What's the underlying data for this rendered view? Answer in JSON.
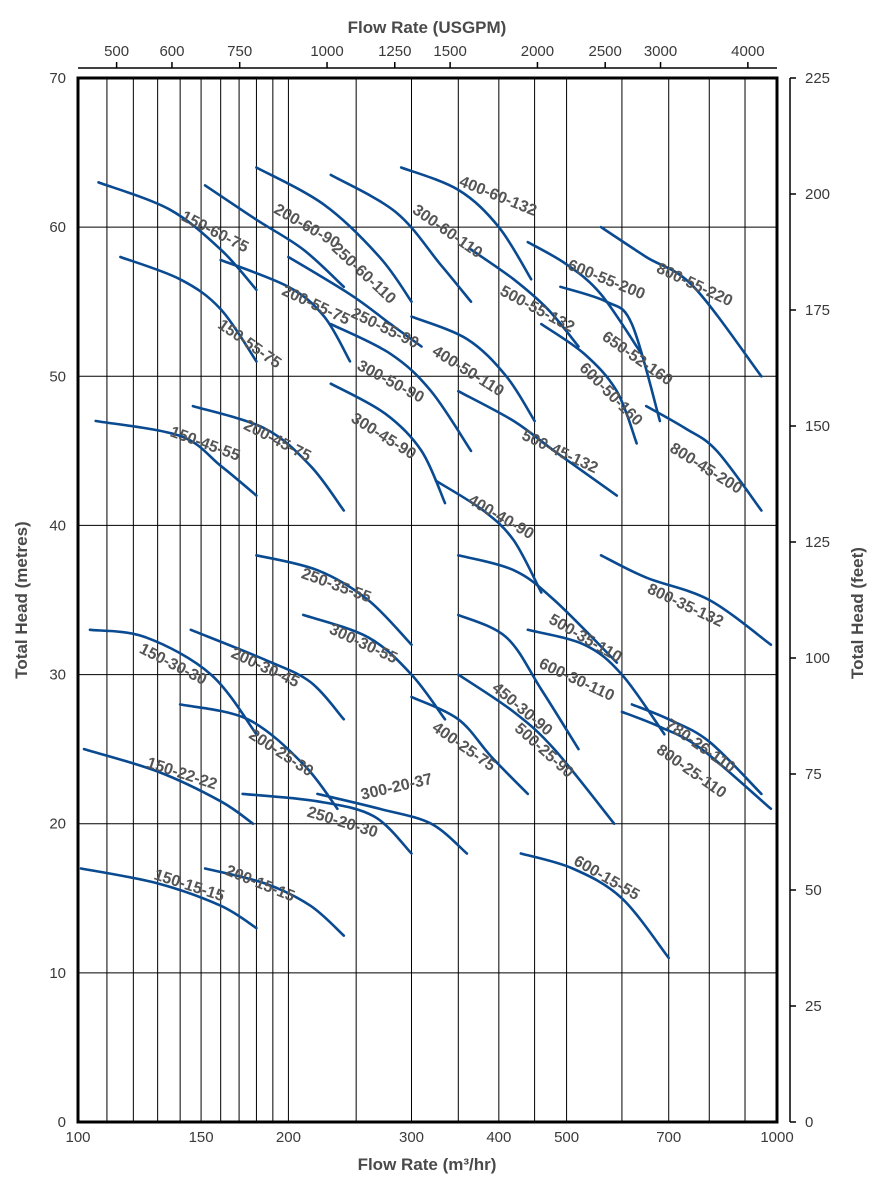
{
  "chart_data": {
    "type": "line",
    "xscale": "log",
    "xlabel": "Flow Rate (m³/hr)",
    "ylabel": "Total Head (metres)",
    "x2label": "Flow Rate (USGPM)",
    "y2label": "Total Head (feet)",
    "xlim": [
      100,
      1000
    ],
    "ylim": [
      0,
      70
    ],
    "y2lim": [
      0,
      225
    ],
    "grid": true,
    "x_ticks": [
      {
        "value": 100,
        "label": "100"
      },
      {
        "value": 150,
        "label": "150"
      },
      {
        "value": 200,
        "label": "200"
      },
      {
        "value": 300,
        "label": "300"
      },
      {
        "value": 400,
        "label": "400"
      },
      {
        "value": 500,
        "label": "500"
      },
      {
        "value": 700,
        "label": "700"
      },
      {
        "value": 1000,
        "label": "1000"
      }
    ],
    "x_gridlines": [
      100,
      110,
      120,
      130,
      140,
      150,
      160,
      170,
      180,
      190,
      200,
      250,
      300,
      350,
      400,
      450,
      500,
      600,
      700,
      800,
      900,
      1000
    ],
    "x2_ticks": [
      {
        "value": 500,
        "label": "500"
      },
      {
        "value": 600,
        "label": "600"
      },
      {
        "value": 750,
        "label": "750"
      },
      {
        "value": 1000,
        "label": "1000"
      },
      {
        "value": 1250,
        "label": "1250"
      },
      {
        "value": 1500,
        "label": "1500"
      },
      {
        "value": 2000,
        "label": "2000"
      },
      {
        "value": 2500,
        "label": "2500"
      },
      {
        "value": 3000,
        "label": "3000"
      },
      {
        "value": 4000,
        "label": "4000"
      }
    ],
    "y_ticks": [
      {
        "value": 0,
        "label": "0"
      },
      {
        "value": 10,
        "label": "10"
      },
      {
        "value": 20,
        "label": "20"
      },
      {
        "value": 30,
        "label": "30"
      },
      {
        "value": 40,
        "label": "40"
      },
      {
        "value": 50,
        "label": "50"
      },
      {
        "value": 60,
        "label": "60"
      },
      {
        "value": 70,
        "label": "70"
      }
    ],
    "y2_ticks": [
      {
        "value": 0,
        "label": "0"
      },
      {
        "value": 25,
        "label": "25"
      },
      {
        "value": 50,
        "label": "50"
      },
      {
        "value": 75,
        "label": "75"
      },
      {
        "value": 100,
        "label": "100"
      },
      {
        "value": 125,
        "label": "125"
      },
      {
        "value": 150,
        "label": "150"
      },
      {
        "value": 175,
        "label": "175"
      },
      {
        "value": 200,
        "label": "200"
      },
      {
        "value": 225,
        "label": "225"
      }
    ],
    "colors": {
      "curve": "#0a4a91",
      "frame": "#000000",
      "grid": "#000000",
      "label": "#555555"
    },
    "series": [
      {
        "name": "150-60-75",
        "x": [
          107,
          135,
          160,
          180
        ],
        "y": [
          63,
          61.2,
          58.5,
          55.8
        ],
        "label_at": [
          140,
          60.5
        ],
        "label_angle": 27
      },
      {
        "name": "200-60-90",
        "x": [
          152,
          180,
          210,
          240
        ],
        "y": [
          62.8,
          60.5,
          58.5,
          56
        ],
        "label_at": [
          190,
          61
        ],
        "label_angle": 30
      },
      {
        "name": "250-60-110",
        "x": [
          180,
          225,
          270,
          300
        ],
        "y": [
          64,
          61.5,
          58,
          55
        ],
        "label_at": [
          230,
          58.5
        ],
        "label_angle": 43
      },
      {
        "name": "300-60-110",
        "x": [
          230,
          285,
          330,
          365
        ],
        "y": [
          63.5,
          61,
          57.5,
          55
        ],
        "label_at": [
          300,
          61
        ],
        "label_angle": 35
      },
      {
        "name": "400-60-132",
        "x": [
          290,
          350,
          400,
          445
        ],
        "y": [
          64,
          62.5,
          60,
          56.5
        ],
        "label_at": [
          350,
          62.8
        ],
        "label_angle": 22
      },
      {
        "name": "150-55-75",
        "x": [
          115,
          140,
          160,
          180
        ],
        "y": [
          58,
          56.5,
          54.5,
          51
        ],
        "label_at": [
          158,
          53.3
        ],
        "label_angle": 35
      },
      {
        "name": "200-55-75",
        "x": [
          160,
          200,
          225,
          245
        ],
        "y": [
          57.8,
          56,
          54,
          51
        ],
        "label_at": [
          195,
          55.5
        ],
        "label_angle": 25
      },
      {
        "name": "250-55-90",
        "x": [
          200,
          245,
          280,
          310
        ],
        "y": [
          58,
          55.5,
          53.5,
          52
        ],
        "label_at": [
          245,
          54
        ],
        "label_angle": 26
      },
      {
        "name": "500-55-132",
        "x": [
          365,
          420,
          470,
          520
        ],
        "y": [
          58.5,
          56.5,
          54.5,
          52
        ],
        "label_at": [
          400,
          55.5
        ],
        "label_angle": 28
      },
      {
        "name": "600-55-200",
        "x": [
          440,
          500,
          560,
          640
        ],
        "y": [
          59,
          57.5,
          55.5,
          51.5
        ],
        "label_at": [
          500,
          57.2
        ],
        "label_angle": 22
      },
      {
        "name": "800-55-220",
        "x": [
          560,
          650,
          760,
          950
        ],
        "y": [
          60,
          58,
          56,
          50
        ],
        "label_at": [
          670,
          57
        ],
        "label_angle": 25
      },
      {
        "name": "650-52-160",
        "x": [
          490,
          570,
          620,
          680
        ],
        "y": [
          56,
          55,
          53.5,
          47
        ],
        "label_at": [
          560,
          52.5
        ],
        "label_angle": 35
      },
      {
        "name": "600-50-160",
        "x": [
          460,
          530,
          590,
          630
        ],
        "y": [
          53.5,
          51.5,
          49,
          45.5
        ],
        "label_at": [
          520,
          50.5
        ],
        "label_angle": 45
      },
      {
        "name": "400-50-110",
        "x": [
          300,
          360,
          410,
          450
        ],
        "y": [
          54,
          52.5,
          50,
          47
        ],
        "label_at": [
          320,
          51.5
        ],
        "label_angle": 32
      },
      {
        "name": "300-50-90",
        "x": [
          230,
          280,
          320,
          365
        ],
        "y": [
          53.5,
          51.5,
          49,
          45
        ],
        "label_at": [
          250,
          50.5
        ],
        "label_angle": 28
      },
      {
        "name": "500-45-132",
        "x": [
          350,
          420,
          480,
          590
        ],
        "y": [
          49,
          47,
          45,
          42
        ],
        "label_at": [
          430,
          45.8
        ],
        "label_angle": 25
      },
      {
        "name": "800-45-200",
        "x": [
          650,
          740,
          820,
          950
        ],
        "y": [
          48,
          46.5,
          45,
          41
        ],
        "label_at": [
          700,
          45
        ],
        "label_angle": 32
      },
      {
        "name": "150-45-55",
        "x": [
          106,
          140,
          160,
          180
        ],
        "y": [
          47,
          46,
          44,
          42
        ],
        "label_at": [
          135,
          46
        ],
        "label_angle": 20
      },
      {
        "name": "200-45-75",
        "x": [
          146,
          185,
          215,
          240
        ],
        "y": [
          48,
          46.5,
          44,
          41
        ],
        "label_at": [
          172,
          46.5
        ],
        "label_angle": 27
      },
      {
        "name": "300-45-90",
        "x": [
          230,
          275,
          310,
          335
        ],
        "y": [
          49.5,
          47.5,
          45,
          41.5
        ],
        "label_at": [
          245,
          47
        ],
        "label_angle": 32
      },
      {
        "name": "400-40-90",
        "x": [
          325,
          380,
          420,
          460
        ],
        "y": [
          43,
          41,
          39,
          35.5
        ],
        "label_at": [
          360,
          41.5
        ],
        "label_angle": 30
      },
      {
        "name": "250-35-55",
        "x": [
          180,
          220,
          260,
          300
        ],
        "y": [
          38,
          37,
          35,
          32
        ],
        "label_at": [
          208,
          36.5
        ],
        "label_angle": 20
      },
      {
        "name": "500-35-110",
        "x": [
          350,
          420,
          480,
          590
        ],
        "y": [
          38,
          37,
          35,
          30.8
        ],
        "label_at": [
          470,
          33.5
        ],
        "label_angle": 30
      },
      {
        "name": "800-35-132",
        "x": [
          560,
          650,
          800,
          980
        ],
        "y": [
          38,
          36.5,
          35,
          32
        ],
        "label_at": [
          650,
          35.5
        ],
        "label_angle": 25
      },
      {
        "name": "150-30-30",
        "x": [
          104,
          125,
          155,
          180
        ],
        "y": [
          33,
          32.5,
          30,
          26
        ],
        "label_at": [
          122,
          31.5
        ],
        "label_angle": 27
      },
      {
        "name": "200-30-45",
        "x": [
          145,
          185,
          215,
          240
        ],
        "y": [
          33,
          31,
          29.5,
          27
        ],
        "label_at": [
          165,
          31.2
        ],
        "label_angle": 25
      },
      {
        "name": "300-30-55",
        "x": [
          210,
          260,
          300,
          335
        ],
        "y": [
          34,
          32.5,
          30,
          27
        ],
        "label_at": [
          228,
          32.8
        ],
        "label_angle": 25
      },
      {
        "name": "450-30-90",
        "x": [
          350,
          410,
          460,
          520
        ],
        "y": [
          34,
          32.5,
          29,
          25
        ],
        "label_at": [
          390,
          29
        ],
        "label_angle": 40
      },
      {
        "name": "600-30-110",
        "x": [
          440,
          530,
          600,
          690
        ],
        "y": [
          33,
          32,
          30,
          26
        ],
        "label_at": [
          455,
          30.5
        ],
        "label_angle": 25
      },
      {
        "name": "780-26-110",
        "x": [
          620,
          700,
          800,
          950
        ],
        "y": [
          28,
          27,
          25.5,
          22
        ],
        "label_at": [
          690,
          26.5
        ],
        "label_angle": 35
      },
      {
        "name": "800-25-110",
        "x": [
          600,
          680,
          780,
          980
        ],
        "y": [
          27.5,
          26.5,
          25,
          21
        ],
        "label_at": [
          670,
          24.8
        ],
        "label_angle": 35
      },
      {
        "name": "200-25-30",
        "x": [
          140,
          175,
          210,
          235
        ],
        "y": [
          28,
          27,
          24,
          21
        ],
        "label_at": [
          175,
          25.8
        ],
        "label_angle": 33
      },
      {
        "name": "400-25-75",
        "x": [
          300,
          350,
          390,
          440
        ],
        "y": [
          28.5,
          27,
          24.5,
          22
        ],
        "label_at": [
          320,
          26.3
        ],
        "label_angle": 35
      },
      {
        "name": "500-25-90",
        "x": [
          350,
          420,
          480,
          585
        ],
        "y": [
          30,
          27.5,
          25,
          20
        ],
        "label_at": [
          420,
          26.3
        ],
        "label_angle": 42
      },
      {
        "name": "150-22-22",
        "x": [
          102,
          130,
          160,
          178
        ],
        "y": [
          25,
          23.5,
          21.5,
          20
        ],
        "label_at": [
          125,
          23.8
        ],
        "label_angle": 18
      },
      {
        "name": "300-20-37",
        "x": [
          220,
          270,
          320,
          360
        ],
        "y": [
          22,
          21,
          20,
          18
        ],
        "label_at": [
          255,
          21.6
        ],
        "label_angle": -13
      },
      {
        "name": "250-20-30",
        "x": [
          172,
          220,
          265,
          300
        ],
        "y": [
          22,
          21.5,
          20.5,
          18
        ],
        "label_at": [
          212,
          20.5
        ],
        "label_angle": 17
      },
      {
        "name": "150-15-15",
        "x": [
          101,
          130,
          160,
          180
        ],
        "y": [
          17,
          16,
          14.5,
          13
        ],
        "label_at": [
          128,
          16.3
        ],
        "label_angle": 18
      },
      {
        "name": "200-15-15",
        "x": [
          152,
          185,
          215,
          240
        ],
        "y": [
          17,
          16,
          14.5,
          12.5
        ],
        "label_at": [
          162,
          16.6
        ],
        "label_angle": 22
      },
      {
        "name": "600-15-55",
        "x": [
          430,
          510,
          600,
          700
        ],
        "y": [
          18,
          17,
          15,
          11
        ],
        "label_at": [
          510,
          17.3
        ],
        "label_angle": 30
      }
    ]
  }
}
